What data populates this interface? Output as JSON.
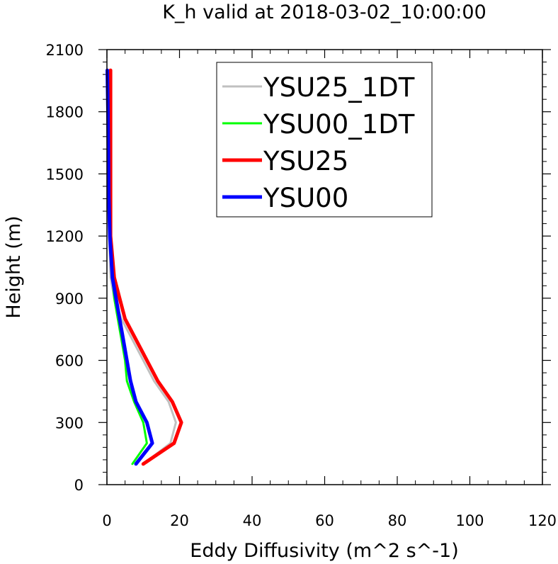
{
  "chart_data": {
    "type": "line",
    "title": "K_h valid at 2018-03-02_10:00:00",
    "xlabel": "Eddy Diffusivity (m^2 s^-1)",
    "ylabel": "Height (m)",
    "xlim": [
      0,
      120
    ],
    "ylim": [
      0,
      2100
    ],
    "xticks": [
      "0",
      "20",
      "40",
      "60",
      "80",
      "100",
      "120"
    ],
    "yticks": [
      "0",
      "300",
      "600",
      "900",
      "1200",
      "1500",
      "1800",
      "2100"
    ],
    "grid": false,
    "legend_position": "top-center",
    "series": [
      {
        "name": "YSU25_1DT",
        "color": "#c0c0c0",
        "x": [
          10,
          17.5,
          19,
          17,
          13,
          10,
          7,
          4,
          2,
          1,
          0.6,
          0.5,
          0.4,
          0.3,
          0.2,
          0.1
        ],
        "y": [
          100,
          200,
          300,
          400,
          500,
          600,
          700,
          800,
          900,
          1000,
          1200,
          1400,
          1600,
          1800,
          1900,
          2000
        ]
      },
      {
        "name": "YSU00_1DT",
        "color": "#00ff00",
        "x": [
          7,
          11,
          10,
          7.5,
          5.5,
          5,
          4,
          3,
          2,
          1.5,
          0.8,
          0.5,
          0.4,
          0.3,
          0.2,
          0.1
        ],
        "y": [
          100,
          200,
          300,
          400,
          500,
          600,
          700,
          800,
          900,
          1000,
          1200,
          1400,
          1600,
          1800,
          1900,
          2000
        ]
      },
      {
        "name": "YSU25",
        "color": "#ff0000",
        "x": [
          10,
          18.5,
          20.5,
          18,
          14,
          11,
          8,
          5,
          3.5,
          2,
          1,
          1,
          1,
          1,
          1,
          1
        ],
        "y": [
          100,
          200,
          300,
          400,
          500,
          600,
          700,
          800,
          900,
          1000,
          1200,
          1400,
          1600,
          1800,
          1900,
          2000
        ]
      },
      {
        "name": "YSU00",
        "color": "#0000ff",
        "x": [
          8,
          12.5,
          11,
          8,
          6.5,
          5.5,
          4.5,
          3.5,
          2.5,
          1.5,
          0.8,
          0.5,
          0.4,
          0.3,
          0.2,
          0.1
        ],
        "y": [
          100,
          200,
          300,
          400,
          500,
          600,
          700,
          800,
          900,
          1000,
          1200,
          1400,
          1600,
          1800,
          1900,
          2000
        ]
      }
    ]
  }
}
